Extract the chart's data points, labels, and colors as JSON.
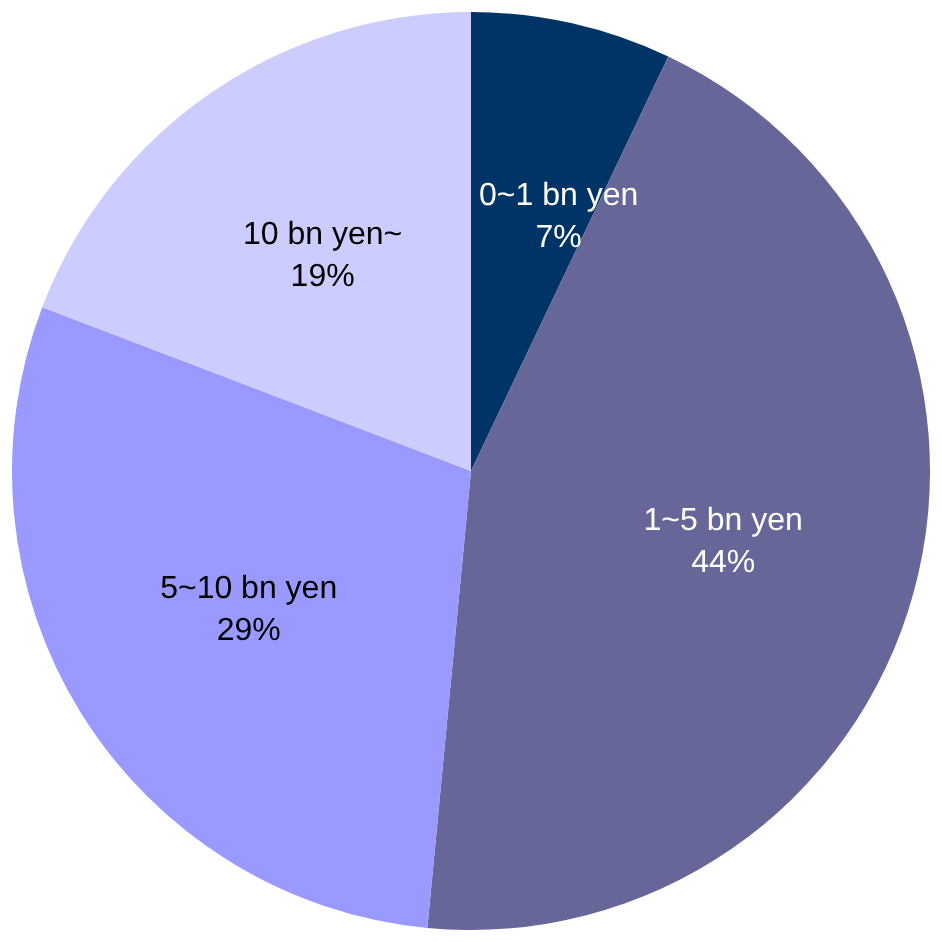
{
  "chart_data": {
    "type": "pie",
    "categories": [
      "0~1 bn yen",
      "1~5 bn yen",
      "5~10 bn yen",
      "10 bn yen~"
    ],
    "values": [
      7,
      44,
      29,
      19
    ],
    "colors": [
      "#003366",
      "#666699",
      "#9999ff",
      "#ccccff"
    ],
    "value_labels": [
      "7%",
      "44%",
      "29%",
      "19%"
    ],
    "legend": false
  }
}
